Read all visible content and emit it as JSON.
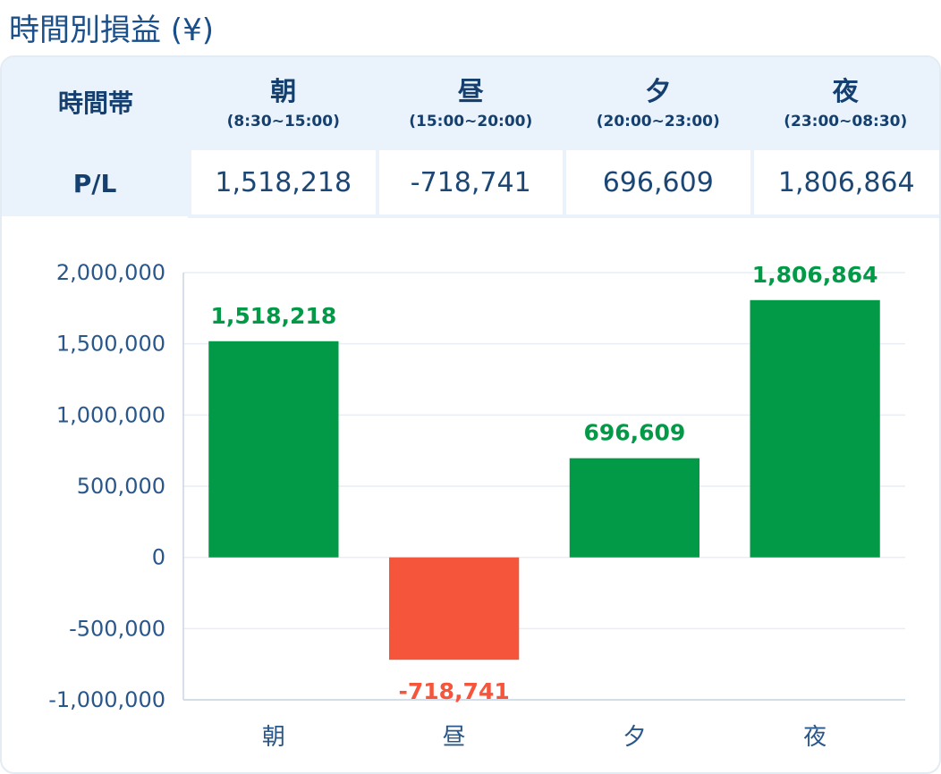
{
  "page": {
    "title": "時間別損益 (¥)"
  },
  "table": {
    "row_header": "時間帯",
    "pl_label": "P/L",
    "periods": [
      {
        "label": "朝",
        "range": "(8:30~15:00)",
        "pl": "1,518,218"
      },
      {
        "label": "昼",
        "range": "(15:00~20:00)",
        "pl": "-718,741"
      },
      {
        "label": "夕",
        "range": "(20:00~23:00)",
        "pl": "696,609"
      },
      {
        "label": "夜",
        "range": "(23:00~08:30)",
        "pl": "1,806,864"
      }
    ]
  },
  "colors": {
    "positive": "#029a47",
    "negative": "#f5553b",
    "grid": "#e8eef4",
    "axis": "#c9d6e3"
  },
  "chart_data": {
    "type": "bar",
    "categories": [
      "朝",
      "昼",
      "夕",
      "夜"
    ],
    "values": [
      1518218,
      -718741,
      696609,
      1806864
    ],
    "value_labels": [
      "1,518,218",
      "-718,741",
      "696,609",
      "1,806,864"
    ],
    "title": "",
    "xlabel": "",
    "ylabel": "",
    "ylim": [
      -1000000,
      2000000
    ],
    "yticks": [
      2000000,
      1500000,
      1000000,
      500000,
      0,
      -500000,
      -1000000
    ],
    "ytick_labels": [
      "2,000,000",
      "1,500,000",
      "1,000,000",
      "500,000",
      "0",
      "-500,000",
      "-1,000,000"
    ],
    "grid": true,
    "legend": "none"
  }
}
